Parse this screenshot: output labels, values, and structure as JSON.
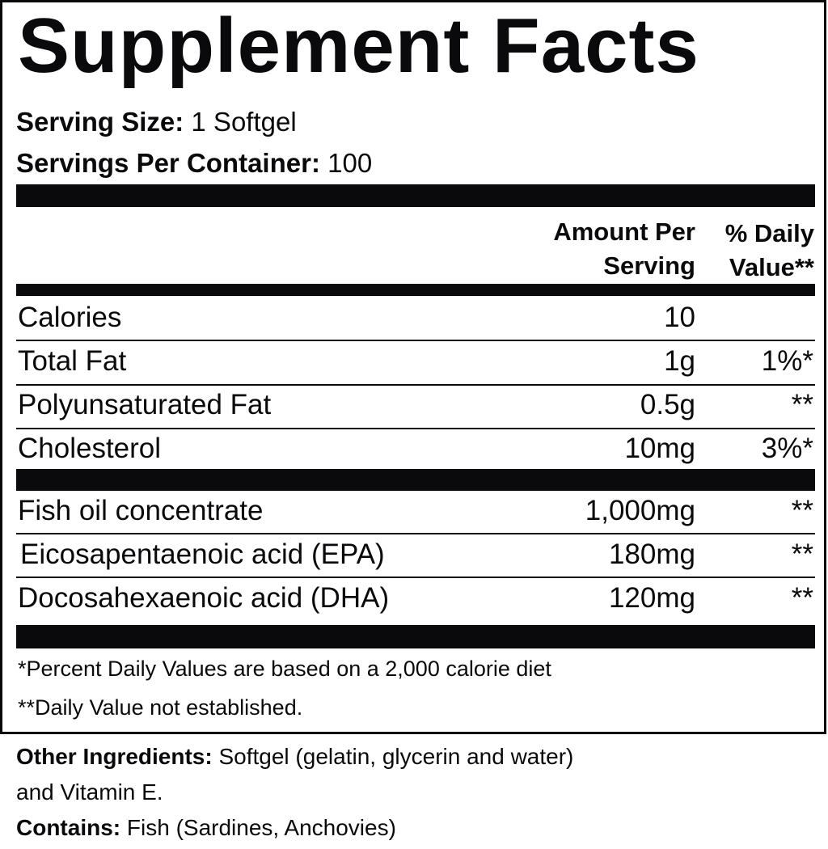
{
  "title": "Supplement Facts",
  "serving_size": {
    "label": "Serving Size:",
    "value": "1 Softgel"
  },
  "servings_per_container": {
    "label": "Servings Per Container:",
    "value": "100"
  },
  "header": {
    "amount_line1": "Amount Per",
    "amount_line2": "Serving",
    "dv_line1": "% Daily",
    "dv_line2": "Value**"
  },
  "rows": [
    {
      "name": "Calories",
      "amount": "10",
      "dv": ""
    },
    {
      "name": "Total Fat",
      "amount": "1g",
      "dv": "1%*"
    },
    {
      "name": "Polyunsaturated Fat",
      "amount": "0.5g",
      "dv": "**"
    },
    {
      "name": "Cholesterol",
      "amount": "10mg",
      "dv": "3%*"
    },
    {
      "name": "Fish oil concentrate",
      "amount": "1,000mg",
      "dv": "**"
    },
    {
      "name": "Eicosapentaenoic acid (EPA)",
      "amount": "180mg",
      "dv": "**"
    },
    {
      "name": "Docosahexaenoic acid (DHA)",
      "amount": "120mg",
      "dv": "**"
    }
  ],
  "footnotes": [
    "*Percent Daily Values are based on a 2,000 calorie diet",
    "**Daily Value not established."
  ],
  "other_ingredients": {
    "label": "Other Ingredients:",
    "value": "Softgel (gelatin, glycerin and water)",
    "value_line2": "and Vitamin E."
  },
  "contains": {
    "label": "Contains:",
    "value": "Fish (Sardines, Anchovies)"
  }
}
